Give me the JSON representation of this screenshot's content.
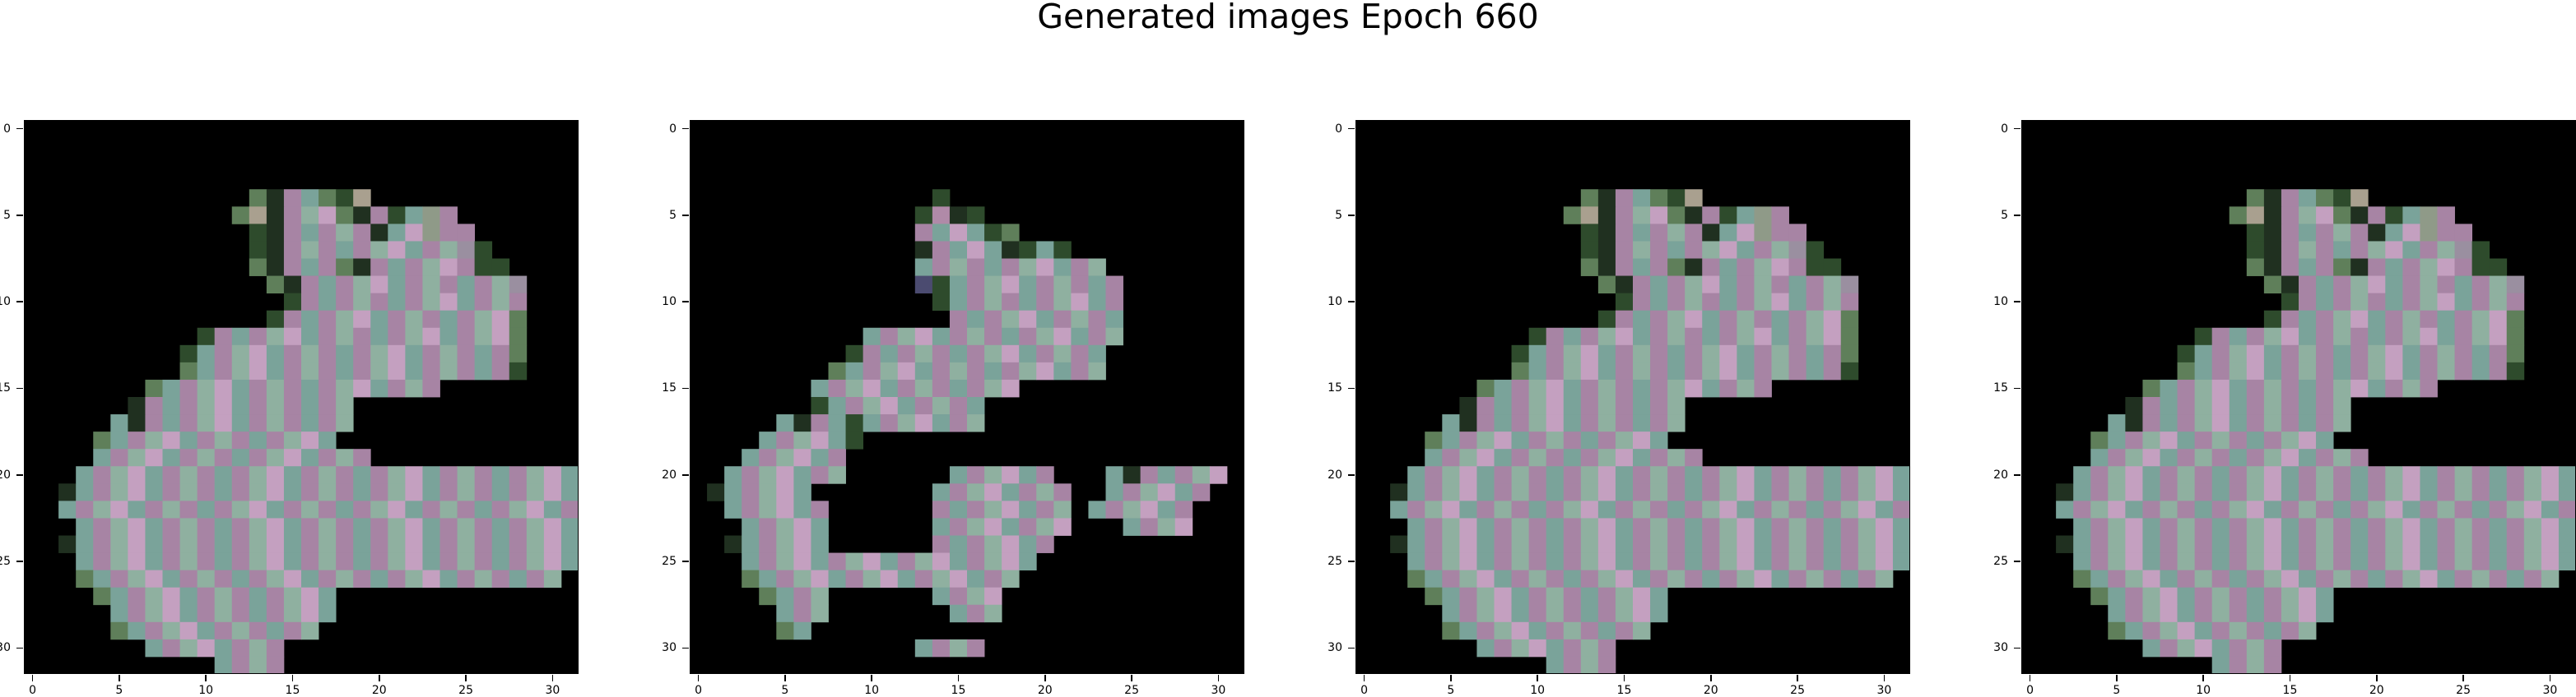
{
  "figure": {
    "title": "Generated images Epoch 660"
  },
  "chart_data": {
    "type": "heatmap",
    "title": "Generated images Epoch 660",
    "grid_size": 32,
    "x_ticks": [
      0,
      5,
      10,
      15,
      20,
      25,
      30
    ],
    "y_ticks": [
      0,
      5,
      10,
      15,
      20,
      25,
      30
    ],
    "xlim": [
      -0.5,
      31.5
    ],
    "ylim": [
      31.5,
      -0.5
    ],
    "grid": false,
    "background_color": "#000000",
    "palette": [
      "#000000",
      "#a784a4",
      "#9a8fa0",
      "#b08aa8",
      "#8f9a88",
      "#a9a08f",
      "#5f7f5a",
      "#2e4b2c",
      "#6f6a92",
      "#c4a0c0",
      "#7aa39a",
      "#203020",
      "#8fb0a0",
      "#b07aa0",
      "#4b4b70"
    ],
    "subplots": [
      {
        "name": "image-1",
        "pixels": [
          "00000000000000000000000000000000",
          "000000000000000000000000000000000",
          "00000000000000000000000000000000",
          "00000000000000000000000000000000",
          "00000000000006b1a67500000000000",
          "00000000000065b1c96b17a4100000",
          "00000000000007b1a1c1ba9411000000",
          "00000000000007b1c1a1c9a1c2700000",
          "00000000000006b1a16b1a1c9177000000",
          "000000000000006b1a1c9a1c1a1c2000000",
          "00000000000000071a1c1a1c9a1c100000",
          "0000000000000071a1c9a1c1a1c9600000",
          "000000000071a1c9a1c1a1c9a1c96000",
          "0000000007a1c9a1c1a1c9a1c1a16000",
          "0000000006a1c9a1c1a1c9a1c1a17000",
          "00000006a1c9a1c1a1c9a1c100000000",
          "000000b1a1c9a1c1a1c00000000000000",
          "00000ab1a1c9a1c1a1c000000000000",
          "00006a1c9a1c1a1c9a000000000000",
          "0000a1c9a1c1a1c9a1c100000000000",
          "000a1c9a1c1a1c9a1c1a1c9a1c1a1c9a",
          "00ba1c9a1c1a1c9a1c1a1c9a1c1a1c9a",
          "00a1c9a1c1a1c9a1c1a1c9a1c1a1c9a1",
          "000a1c9a1c1a1c9a1c1a1c9a1c1a1c9a",
          "00ba1c9a1c1a1c9a1c1a1c9a1c1a1c9a",
          "000a1c9a1c1a1c9a1c1a1c9a1c1a1c9a",
          "0006a1c9a1c1a1c9a1c1a1c9a1c1a1c0",
          "00006a1c9a1c1a1c9a0000000000000",
          "00000a1c9a1c1a1c9a000000000000",
          "000006a1c9a1c1a1c000000000000",
          "0000000a1c9a1c10000000000000",
          "00000000000a1c100000000000000"
        ]
      },
      {
        "name": "image-2",
        "pixels": [
          "00000000000000000000000000000000",
          "00000000000000000000000000000000",
          "00000000000000000000000000000000",
          "00000000000000000000000000000000",
          "00000000000000700000000000000000",
          "000000000000073b7000000000000000",
          "00000000000001a9a7600000000000000",
          "0000000000000b1a9ab7a7000000000",
          "0000000000000a1c1a1c9a1c00000000",
          "0000000000000e7a1c9a1c1a10000000",
          "000000000000007a1c1a1c9a1000000",
          "0000000000000001a1c9a1c1a0000000",
          "0000000000a1c9a1c1a1c9a1c0000000",
          "00000000071a1c1a1c9a1c1a0000000",
          "000000006a1c9a1c1a1c9a1c00000000",
          "0000000a1c9a1c1a1c9000000000000",
          "00000007a1c9a1c1a0000000000000",
          "00000ab1a7a1c9a1c000000000000",
          "0000a1c9a7000000000000000000",
          "000a1c9a1000000000000000000",
          "00a1c9a1c000000a1c9a1000ab1a1c9",
          "0ba1c9a0000000a1c9a1c100a1c9a1",
          "00a1c9a10000001a1c9a1c0a1c9a10",
          "000a1c9a000000a1c9a1c9000a1c90",
          "00ba1c9a0000001a1c9a10000000000",
          "000a1c9a1c9a1c9a1c9a00000000000",
          "0006a1c9a1c9a1c9a1c000000000000",
          "00006a1c000000a1c90000000000000",
          "00000a1c0000000a1c0000000000000",
          "000006a0000000000000000000000",
          "0000000000000a1c1000000000000",
          "0000000000000000000000000000000"
        ]
      },
      {
        "name": "image-3",
        "pixels": [
          "00000000000000000000000000000000",
          "000000000000000000000000000000000",
          "00000000000000000000000000000000",
          "00000000000000000000000000000000",
          "00000000000006b1a67500000000000",
          "00000000000065b1c96b17a4100000",
          "00000000000007b1a1c1ba9411000000",
          "00000000000007b1c1a1c9a1c2700000",
          "00000000000006b1a16b1a1c9177000000",
          "000000000000006b1a1c9a1c1a1c2000000",
          "00000000000000071a1c1a1c9a1c100000",
          "0000000000000071a1c9a1c1a1c9600000",
          "000000000071a1c9a1c1a1c9a1c96000",
          "0000000007a1c9a1c1a1c9a1c1a16000",
          "0000000006a1c9a1c1a1c9a1c1a17000",
          "00000006a1c9a1c1a1c9a1c100000000",
          "000000b1a1c9a1c1a1c00000000000000",
          "00000ab1a1c9a1c1a1c000000000000",
          "00006a1c9a1c1a1c9a000000000000",
          "0000a1c9a1c1a1c9a1c100000000000",
          "000a1c9a1c1a1c9a1c1a1c9a1c1a1c9a",
          "00ba1c9a1c1a1c9a1c1a1c9a1c1a1c9a",
          "00a1c9a1c1a1c9a1c1a1c9a1c1a1c9a1",
          "000a1c9a1c1a1c9a1c1a1c9a1c1a1c9a",
          "00ba1c9a1c1a1c9a1c1a1c9a1c1a1c9a",
          "000a1c9a1c1a1c9a1c1a1c9a1c1a1c9a",
          "0006a1c9a1c1a1c9a1c1a1c9a1c1a1c0",
          "00006a1c9a1c1a1c9a0000000000000",
          "00000a1c9a1c1a1c9a000000000000",
          "000006a1c9a1c1a1c000000000000",
          "0000000a1c9a1c10000000000000",
          "00000000000a1c100000000000000"
        ]
      },
      {
        "name": "image-4",
        "pixels": [
          "00000000000000000000000000000000",
          "000000000000000000000000000000000",
          "00000000000000000000000000000000",
          "00000000000000000000000000000000",
          "00000000000006b1a67500000000000",
          "00000000000065b1c96b17a4100000",
          "00000000000007b1a1c1ba9411000000",
          "00000000000007b1c1a1c9a1c2700000",
          "00000000000006b1a16b1a1c9177000000",
          "000000000000006b1a1c9a1c1a1c2000000",
          "00000000000000071a1c1a1c9a1c100000",
          "0000000000000071a1c9a1c1a1c9600000",
          "000000000071a1c9a1c1a1c9a1c96000",
          "0000000007a1c9a1c1a1c9a1c1a16000",
          "0000000006a1c9a1c1a1c9a1c1a17000",
          "00000006a1c9a1c1a1c9a1c100000000",
          "000000b1a1c9a1c1a1c00000000000000",
          "00000ab1a1c9a1c1a1c000000000000",
          "00006a1c9a1c1a1c9a000000000000",
          "0000a1c9a1c1a1c9a1c100000000000",
          "000a1c9a1c1a1c9a1c1a1c9a1c1a1c9a",
          "00ba1c9a1c1a1c9a1c1a1c9a1c1a1c9a",
          "00a1c9a1c1a1c9a1c1a1c9a1c1a1c9a1",
          "000a1c9a1c1a1c9a1c1a1c9a1c1a1c9a",
          "00ba1c9a1c1a1c9a1c1a1c9a1c1a1c9a",
          "000a1c9a1c1a1c9a1c1a1c9a1c1a1c9a",
          "0006a1c9a1c1a1c9a1c1a1c9a1c1a1c0",
          "00006a1c9a1c1a1c9a0000000000000",
          "00000a1c9a1c1a1c9a000000000000",
          "000006a1c9a1c1a1c000000000000",
          "0000000a1c9a1c10000000000000",
          "00000000000a1c100000000000000"
        ]
      }
    ]
  }
}
